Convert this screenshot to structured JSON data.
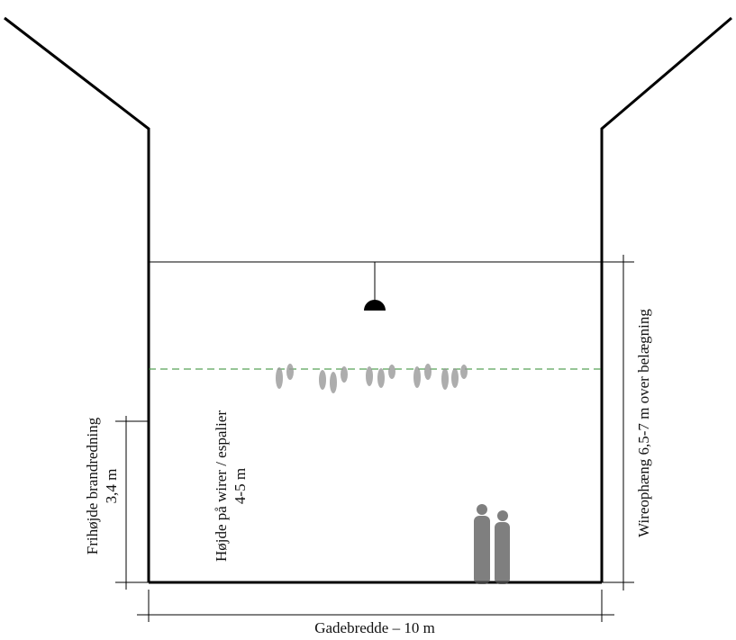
{
  "labels": {
    "fire_clearance": "Frihøjde brandredning",
    "fire_clearance_value": "3,4 m",
    "wire_height": "Højde på wirer / espalier",
    "wire_height_value": "4-5 m",
    "wire_suspension": "Wireophæng 6,5-7 m over belægning",
    "street_width": "Gadebredde – 10 m"
  }
}
